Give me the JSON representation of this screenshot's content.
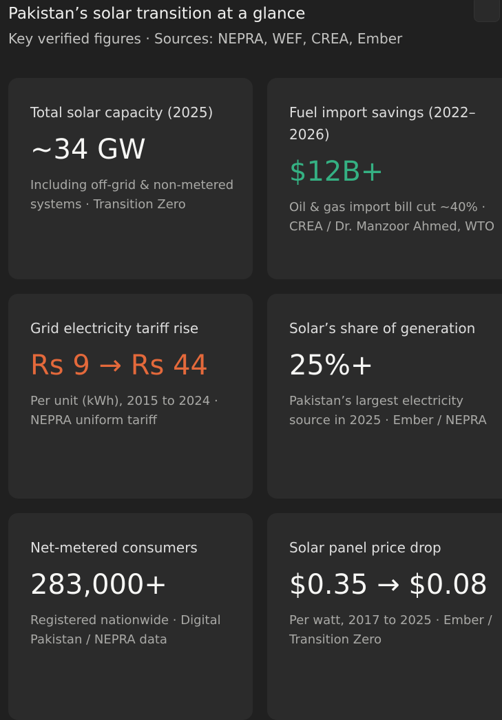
{
  "header": {
    "title": "Pakistan’s solar transition at a glance",
    "subtitle": "Key verified figures · Sources: NEPRA, WEF, CREA, Ember"
  },
  "cards": [
    {
      "label": "Total solar capacity (2025)",
      "value": "~34 GW",
      "note": "Including off-grid & non-metered systems · Transition Zero"
    },
    {
      "label": "Fuel import savings (2022–2026)",
      "value": "$12B+",
      "note": "Oil & gas import bill cut ~40% · CREA / Dr. Manzoor Ahmed, WTO"
    },
    {
      "label": "Grid electricity tariff rise",
      "value": "Rs 9 → Rs 44",
      "note": "Per unit (kWh), 2015 to 2024 · NEPRA uniform tariff"
    },
    {
      "label": "Solar’s share of generation",
      "value": "25%+",
      "note": "Pakistan’s largest electricity source in 2025 · Ember / NEPRA"
    },
    {
      "label": "Net-metered consumers",
      "value": "283,000+",
      "note": "Registered nationwide · Digital Pakistan / NEPRA data"
    },
    {
      "label": "Solar panel price drop",
      "value": "$0.35 → $0.08",
      "note": "Per watt, 2017 to 2025 · Ember / Transition Zero"
    }
  ],
  "colors": {
    "background": "#202020",
    "card": "#2b2b2b",
    "accent_green": "#35b183",
    "accent_orange": "#e4693b"
  }
}
